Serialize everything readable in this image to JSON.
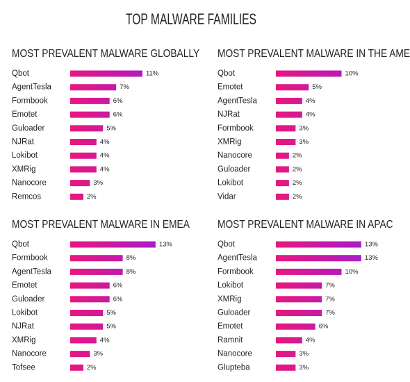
{
  "title": "TOP MALWARE FAMILIES",
  "chart_data": [
    {
      "type": "bar",
      "orientation": "horizontal",
      "title": "MOST PREVALENT MALWARE GLOBALLY",
      "categories": [
        "Qbot",
        "AgentTesla",
        "Formbook",
        "Emotet",
        "Guloader",
        "NJRat",
        "Lokibot",
        "XMRig",
        "Nanocore",
        "Remcos"
      ],
      "values": [
        11,
        7,
        6,
        6,
        5,
        4,
        4,
        4,
        3,
        2
      ],
      "value_labels": [
        "11%",
        "7%",
        "6%",
        "6%",
        "5%",
        "4%",
        "4%",
        "4%",
        "3%",
        "2%"
      ],
      "colors": [
        "#e8187e",
        "#a81ccb"
      ]
    },
    {
      "type": "bar",
      "orientation": "horizontal",
      "title": "MOST PREVALENT MALWARE IN THE AMERICAS",
      "categories": [
        "Qbot",
        "Emotet",
        "AgentTesla",
        "NJRat",
        "Formbook",
        "XMRig",
        "Nanocore",
        "Guloader",
        "Lokibot",
        "Vidar"
      ],
      "values": [
        10,
        5,
        4,
        4,
        3,
        3,
        2,
        2,
        2,
        2
      ],
      "value_labels": [
        "10%",
        "5%",
        "4%",
        "4%",
        "3%",
        "3%",
        "2%",
        "2%",
        "2%",
        "2%"
      ],
      "colors": [
        "#e8187e",
        "#a81ccb"
      ]
    },
    {
      "type": "bar",
      "orientation": "horizontal",
      "title": "MOST PREVALENT MALWARE IN EMEA",
      "categories": [
        "Qbot",
        "Formbook",
        "AgentTesla",
        "Emotet",
        "Guloader",
        "Lokibot",
        "NJRat",
        "XMRig",
        "Nanocore",
        "Tofsee"
      ],
      "values": [
        13,
        8,
        8,
        6,
        6,
        5,
        5,
        4,
        3,
        2
      ],
      "value_labels": [
        "13%",
        "8%",
        "8%",
        "6%",
        "6%",
        "5%",
        "5%",
        "4%",
        "3%",
        "2%"
      ],
      "colors": [
        "#e8187e",
        "#a81ccb"
      ]
    },
    {
      "type": "bar",
      "orientation": "horizontal",
      "title": "MOST PREVALENT MALWARE IN APAC",
      "categories": [
        "Qbot",
        "AgentTesla",
        "Formbook",
        "Lokibot",
        "XMRig",
        "Guloader",
        "Emotet",
        "Ramnit",
        "Nanocore",
        "Glupteba"
      ],
      "values": [
        13,
        13,
        10,
        7,
        7,
        7,
        6,
        4,
        3,
        3
      ],
      "value_labels": [
        "13%",
        "13%",
        "10%",
        "7%",
        "7%",
        "7%",
        "6%",
        "4%",
        "3%",
        "3%"
      ],
      "colors": [
        "#e8187e",
        "#a81ccb"
      ]
    }
  ]
}
